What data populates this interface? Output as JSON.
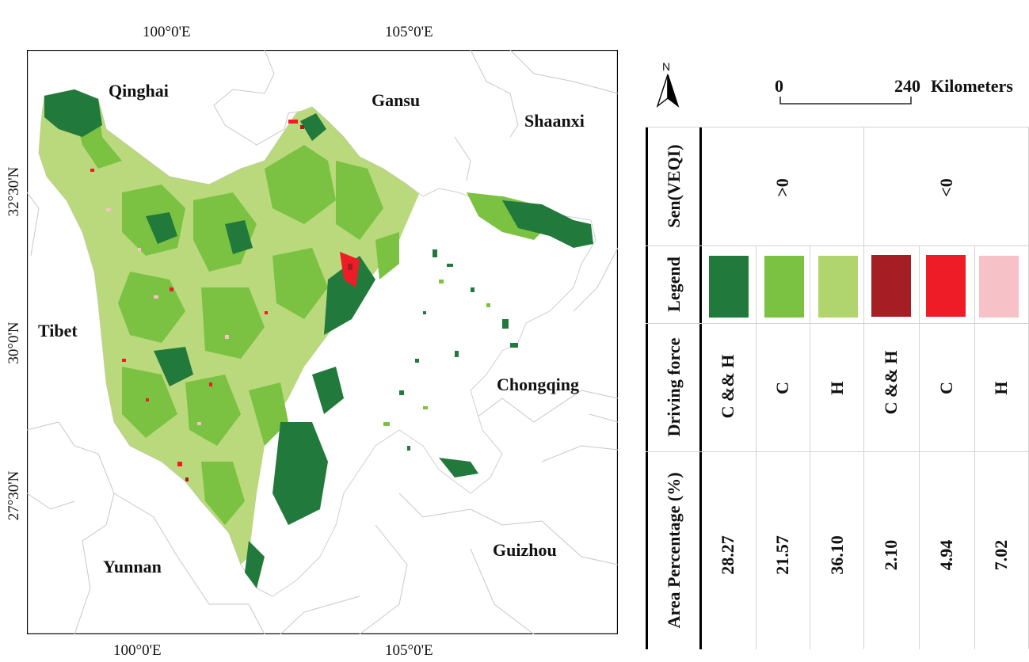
{
  "map": {
    "longitude_ticks_top": [
      "100°0'E",
      "105°0'E"
    ],
    "longitude_ticks_bottom": [
      "100°0'E",
      "105°0'E"
    ],
    "latitude_ticks": [
      "32°30'N",
      "30°0'N",
      "27°30'N"
    ],
    "regions": {
      "qinghai": "Qinghai",
      "gansu": "Gansu",
      "shaanxi": "Shaanxi",
      "tibet": "Tibet",
      "chongqing": "Chongqing",
      "yunnan": "Yunnan",
      "guizhou": "Guizhou"
    },
    "north_arrow_label": "N",
    "scale_bar": {
      "start": "0",
      "end": "240",
      "unit": "Kilometers"
    }
  },
  "legend_table": {
    "row_headers": {
      "sen": "Sen(VEQI)",
      "legend": "Legend",
      "driving_force": "Driving force",
      "area_percentage": "Area Percentage (%)"
    },
    "groups": [
      {
        "label": ">0",
        "columns": 3
      },
      {
        "label": "<0",
        "columns": 3
      }
    ],
    "columns": [
      {
        "color": "#217a3b",
        "driving_force": "C && H",
        "area": "28.27"
      },
      {
        "color": "#7bc242",
        "driving_force": "C",
        "area": "21.57"
      },
      {
        "color": "#b1d56e",
        "driving_force": "H",
        "area": "36.10"
      },
      {
        "color": "#a51e24",
        "driving_force": "C && H",
        "area": "2.10"
      },
      {
        "color": "#ee1c26",
        "driving_force": "C",
        "area": "4.94"
      },
      {
        "color": "#f7c2c7",
        "driving_force": "H",
        "area": "7.02"
      }
    ]
  },
  "colors": {
    "dark_green": "#217a3b",
    "mid_green": "#7bc242",
    "light_green": "#b1d56e",
    "dark_red": "#a51e24",
    "red": "#ee1c26",
    "pink": "#f7c2c7",
    "boundary_gray": "#c8c8c8"
  }
}
